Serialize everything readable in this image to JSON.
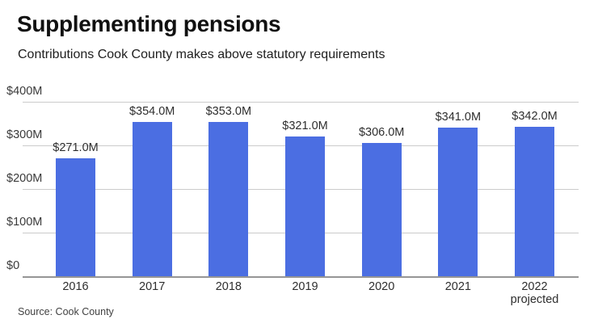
{
  "header": {
    "title": "Supplementing pensions",
    "subtitle": "Contributions Cook County makes above statutory requirements"
  },
  "chart_data": {
    "type": "bar",
    "title": "Supplementing pensions",
    "subtitle": "Contributions Cook County makes above statutory requirements",
    "categories": [
      "2016",
      "2017",
      "2018",
      "2019",
      "2020",
      "2021",
      "2022"
    ],
    "category_notes": [
      "",
      "",
      "",
      "",
      "",
      "",
      "projected"
    ],
    "values": [
      271,
      354,
      353,
      321,
      306,
      341,
      342
    ],
    "value_labels": [
      "$271.0M",
      "$354.0M",
      "$353.0M",
      "$321.0M",
      "$306.0M",
      "$341.0M",
      "$342.0M"
    ],
    "ylim": [
      0,
      400
    ],
    "yticks": [
      0,
      100,
      200,
      300,
      400
    ],
    "ytick_labels": [
      "$0",
      "$100M",
      "$200M",
      "$300M",
      "$400M"
    ],
    "grid": true,
    "legend": false,
    "bar_color": "#4B6EE2",
    "gridline_color": "#cbcbcb",
    "baseline_color": "#969696",
    "source": "Source: Cook County"
  },
  "footer": {
    "source": "Source: Cook County"
  }
}
